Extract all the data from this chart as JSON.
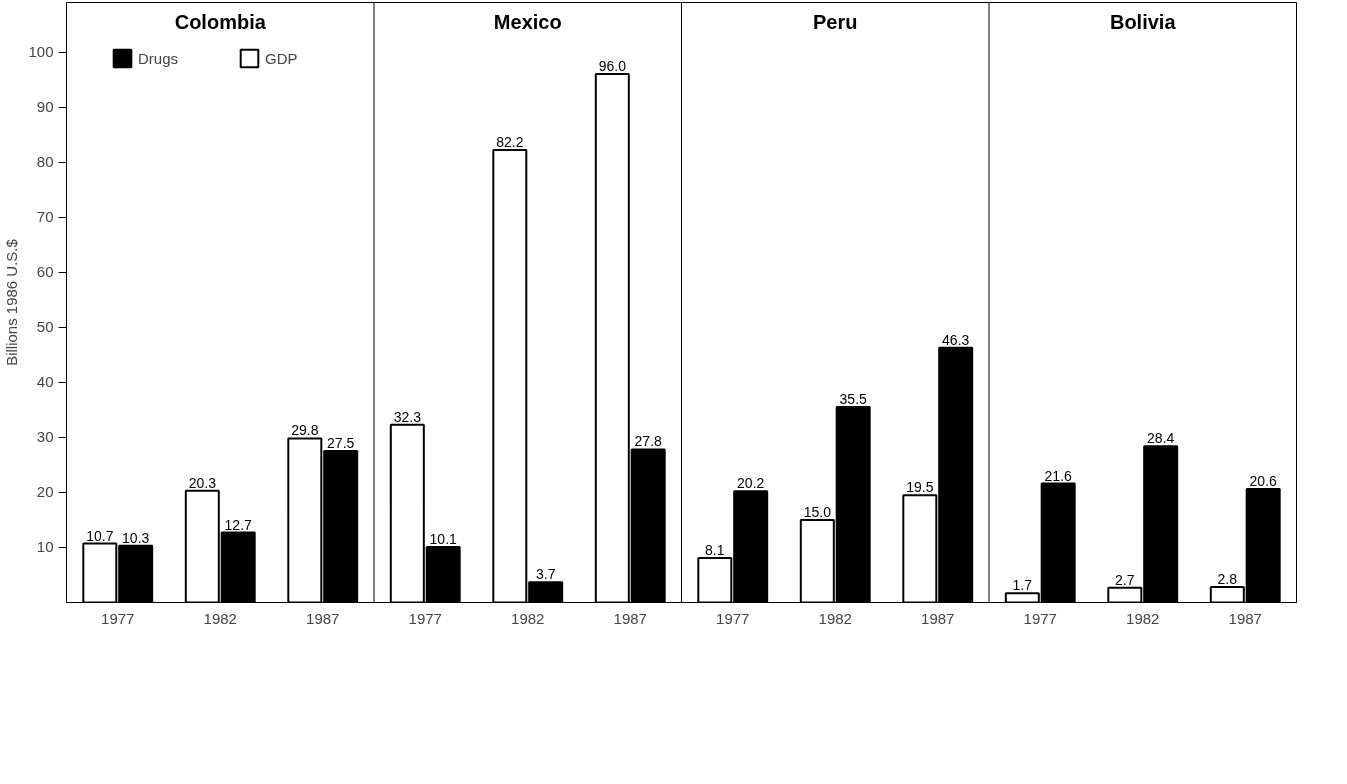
{
  "chart_data": {
    "type": "bar",
    "ylabel": "Billions 1986 U.S.$",
    "annotations": [
      "Colombia",
      "Mexico",
      "Peru",
      "Bolivia"
    ],
    "categories": [
      "1977",
      "1982",
      "1987",
      "1977",
      "1982",
      "1987",
      "1977",
      "1982",
      "1987",
      "1977",
      "1982",
      "1987"
    ],
    "series": [
      {
        "name": "GDP",
        "color": "#ffffff",
        "values": [
          10.7,
          20.3,
          29.8,
          32.3,
          82.2,
          96.0,
          8.1,
          15.0,
          19.5,
          1.7,
          2.7,
          2.8
        ],
        "value_labels": [
          "10.7",
          "20.3",
          "29.8",
          "32.3",
          "82.2",
          "96.0",
          "8.1",
          "15.0",
          "19.5",
          "1.7",
          "2.7",
          "2.8"
        ]
      },
      {
        "name": "Drugs",
        "color": "#000000",
        "values": [
          10.3,
          12.7,
          27.5,
          10.1,
          3.7,
          27.8,
          20.2,
          35.5,
          46.3,
          21.6,
          28.4,
          20.6
        ],
        "value_labels": [
          "10.3",
          "12.7",
          "27.5",
          "10.1",
          "3.7",
          "27.8",
          "20.2",
          "35.5",
          "46.3",
          "21.6",
          "28.4",
          "20.6"
        ]
      }
    ],
    "ylim": [
      0,
      109
    ],
    "yticks": [
      10,
      20,
      30,
      40,
      50,
      60,
      70,
      80,
      90,
      100
    ],
    "grid": false,
    "legend": "top left"
  }
}
